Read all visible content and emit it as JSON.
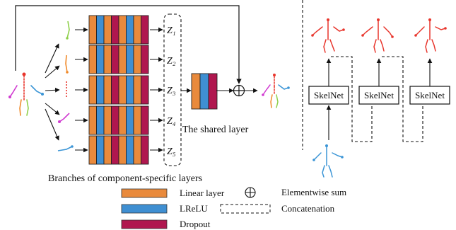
{
  "colors": {
    "linear": "#e98a3c",
    "lrelu": "#3f8fd2",
    "dropout": "#b0174f",
    "pose_red": "#e8352c",
    "pose_blue": "#3b95d6",
    "pose_green": "#8fd04b",
    "pose_orange": "#f08a2a",
    "pose_magenta": "#d13bd1"
  },
  "branch_pattern": [
    "linear",
    "lrelu",
    "linear",
    "dropout",
    "linear",
    "lrelu",
    "linear",
    "dropout"
  ],
  "shared_pattern": [
    "linear",
    "lrelu",
    "dropout"
  ],
  "z_labels": [
    "Z₁",
    "Z₂",
    "Z₃",
    "Z₄",
    "Z₅"
  ],
  "shared_layer_label": "The shared layer",
  "branches_label": "Branches of component-specific layers",
  "skelnet_labels": [
    "SkelNet",
    "SkelNet",
    "SkelNet"
  ],
  "elementwise_symbol": "⊕",
  "legend": {
    "linear": "Linear layer",
    "lrelu": "LReLU",
    "dropout": "Dropout",
    "elementwise": "Elementwise sum",
    "concat": "Concatenation"
  }
}
